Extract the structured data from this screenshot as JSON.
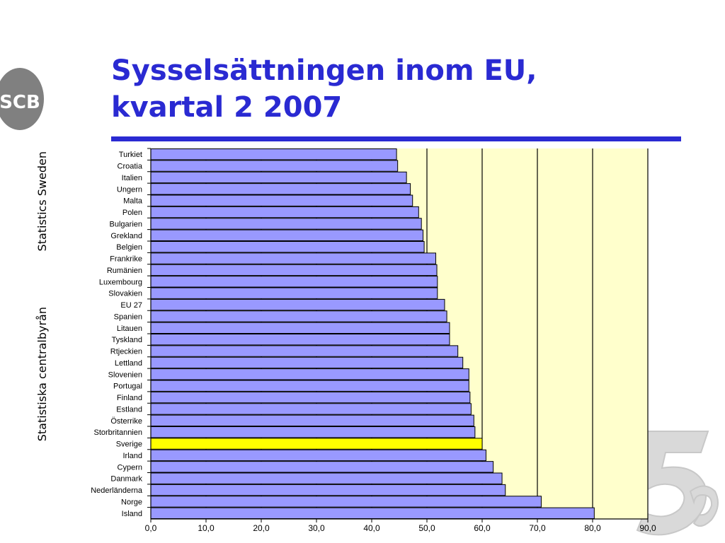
{
  "logo": {
    "text": "SCB"
  },
  "side": {
    "top_text": "Statistics Sweden",
    "bottom_text": "Statistiska centralbyrån"
  },
  "title": {
    "line1": "Sysselsättningen inom EU,",
    "line2": "kvartal 2 2007"
  },
  "colors": {
    "title": "#2a2ad2",
    "bar": "#9999ff",
    "highlight": "#ffff00",
    "plot_bg": "#ffffcc"
  },
  "chart_data": {
    "type": "bar",
    "orientation": "horizontal",
    "categories": [
      "Turkiet",
      "Croatia",
      "Italien",
      "Ungern",
      "Malta",
      "Polen",
      "Bulgarien",
      "Grekland",
      "Belgien",
      "Frankrike",
      "Rumänien",
      "Luxembourg",
      "Slovakien",
      "EU 27",
      "Spanien",
      "Litauen",
      "Tyskland",
      "Rtjeckien",
      "Lettland",
      "Slovenien",
      "Portugal",
      "Finland",
      "Estland",
      "Österrike",
      "Storbritannien",
      "Sverige",
      "Irland",
      "Cypern",
      "Danmark",
      "Nederländerna",
      "Norge",
      "Island"
    ],
    "values": [
      44.5,
      44.7,
      46.3,
      47.0,
      47.4,
      48.5,
      49.0,
      49.3,
      49.5,
      51.6,
      51.8,
      51.9,
      51.9,
      53.2,
      53.6,
      54.1,
      54.1,
      55.6,
      56.5,
      57.6,
      57.6,
      57.8,
      58.0,
      58.5,
      58.7,
      60.0,
      60.7,
      62.0,
      63.6,
      64.2,
      70.7,
      80.3
    ],
    "highlight": "Sverige",
    "xlim": [
      0,
      90
    ],
    "xticks": [
      "0,0",
      "10,0",
      "20,0",
      "30,0",
      "40,0",
      "50,0",
      "60,0",
      "70,0",
      "80,0",
      "90,0"
    ],
    "grid": "vertical"
  }
}
